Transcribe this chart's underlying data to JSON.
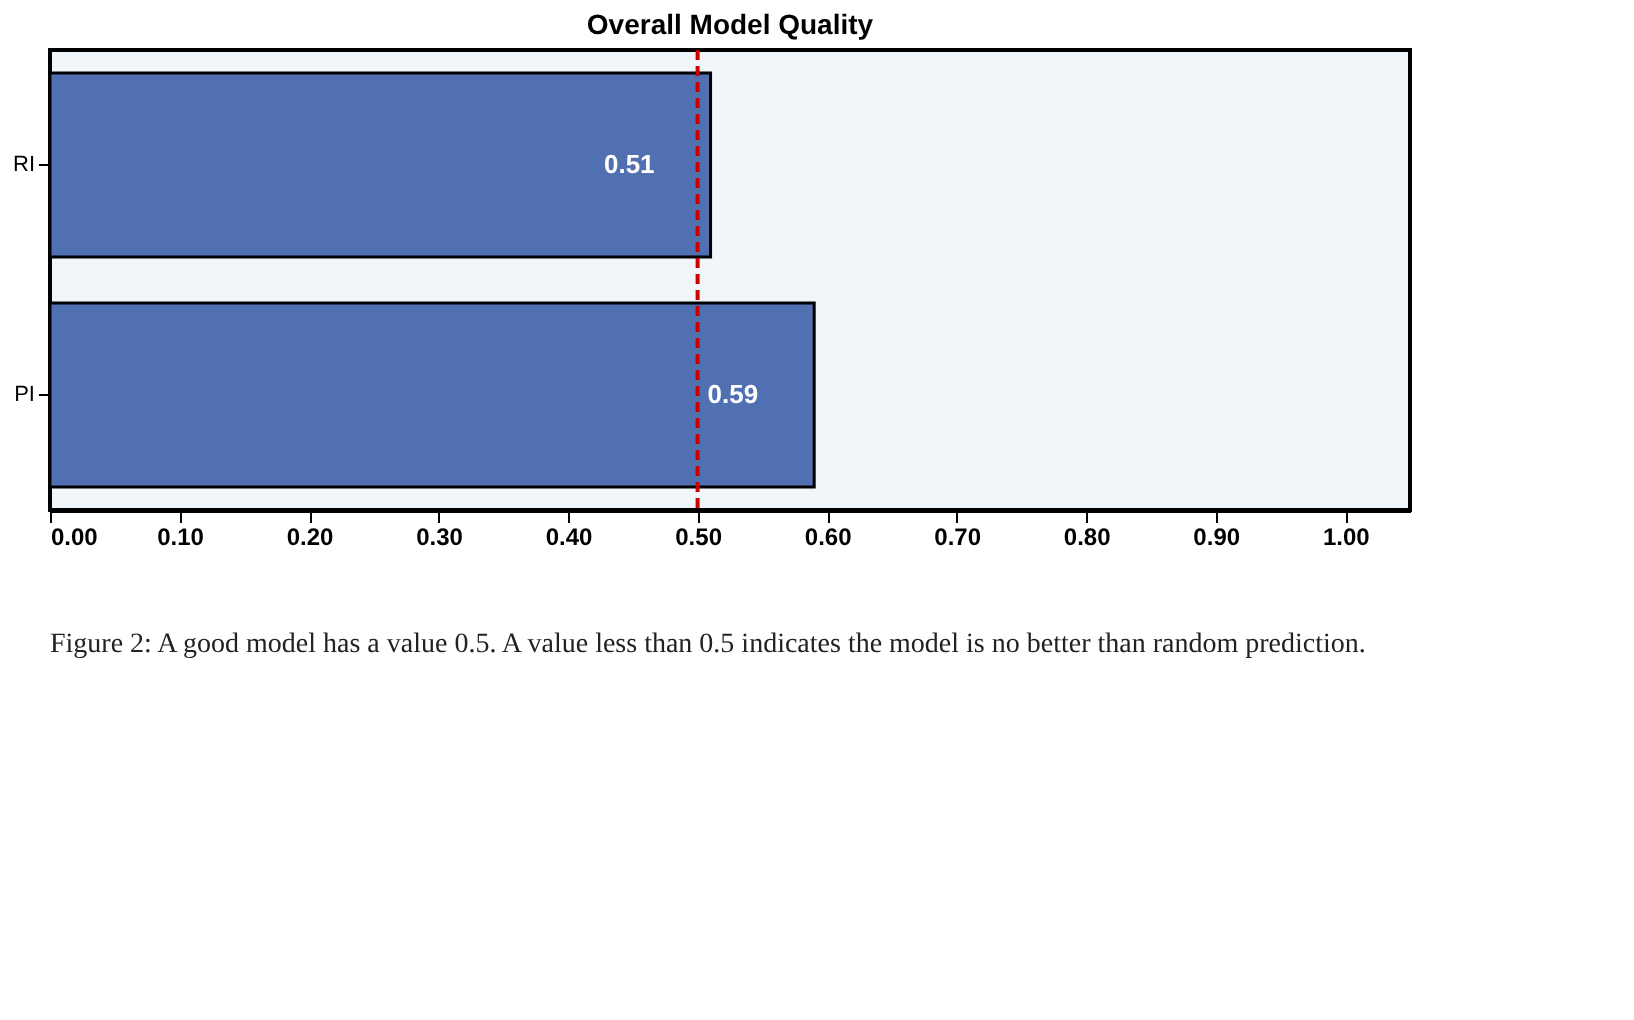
{
  "chart_data": {
    "type": "bar",
    "orientation": "horizontal",
    "title": "Overall Model Quality",
    "categories": [
      "RI",
      "PI"
    ],
    "values": [
      0.51,
      0.59
    ],
    "color": "#5170b1",
    "data_labels": true,
    "xlim": [
      0,
      1.05
    ],
    "xticks": [
      {
        "value": 0,
        "label": "0.00"
      },
      {
        "value": 0.1,
        "label": "0.10"
      },
      {
        "value": 0.2,
        "label": "0.20"
      },
      {
        "value": 0.3,
        "label": "0.30"
      },
      {
        "value": 0.4,
        "label": "0.40"
      },
      {
        "value": 0.5,
        "label": "0.50"
      },
      {
        "value": 0.6,
        "label": "0.60"
      },
      {
        "value": 0.7,
        "label": "0.70"
      },
      {
        "value": 0.8,
        "label": "0.80"
      },
      {
        "value": 0.9,
        "label": "0.90"
      },
      {
        "value": 1.0,
        "label": "1.00"
      }
    ],
    "ref_lines": [
      {
        "axis": "x",
        "value": 0.5,
        "color": "#cc0000",
        "line_style": "dashed"
      }
    ],
    "grid": false,
    "annotations": [
      "Figure 2: A good model has a value 0.5. A value less than 0.5 indicates the model is no better than random prediction."
    ]
  }
}
